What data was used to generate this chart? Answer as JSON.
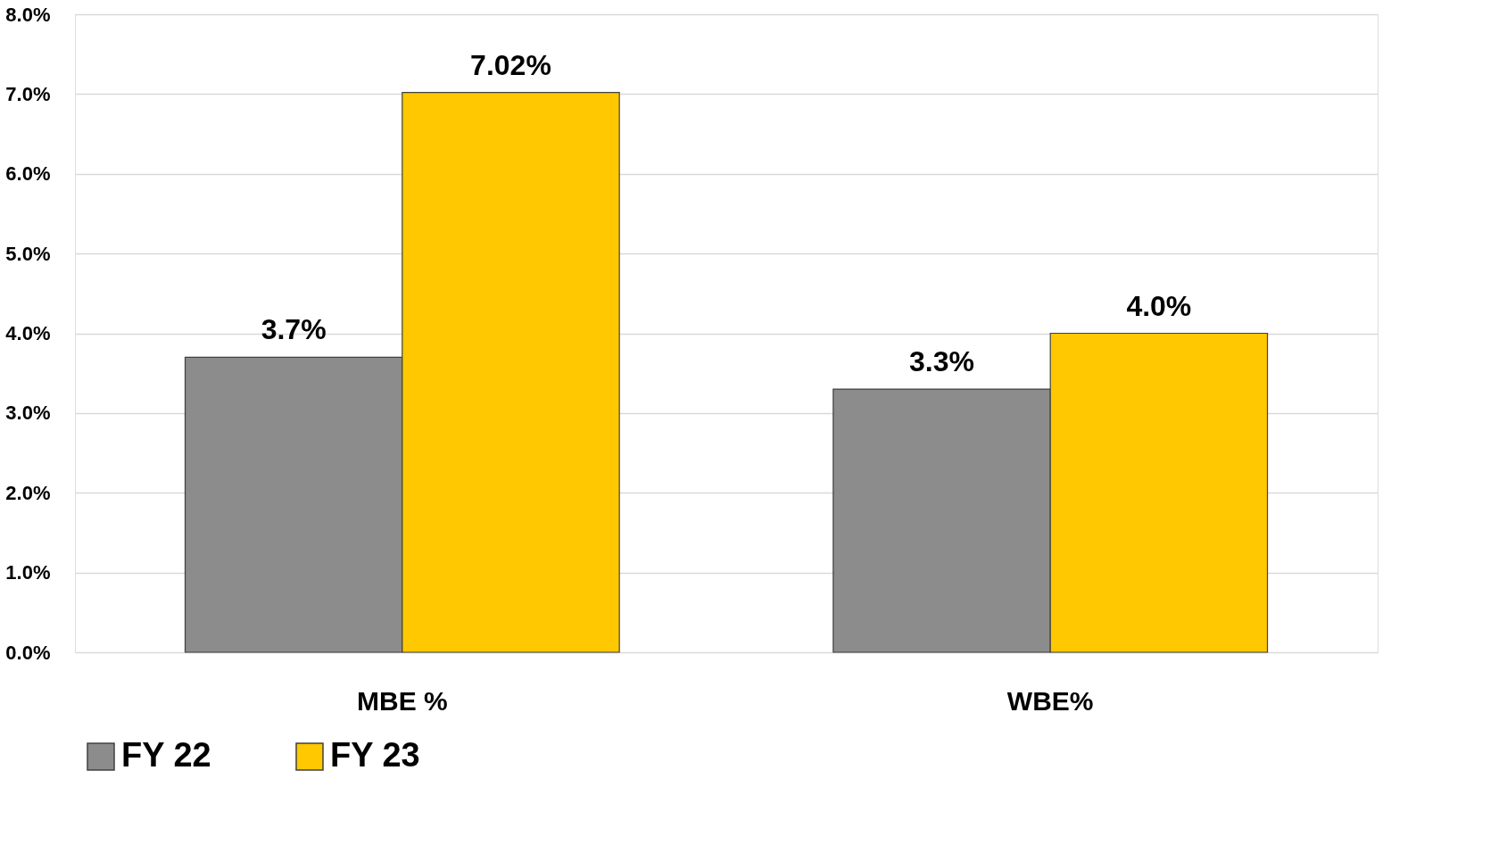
{
  "chart_data": {
    "type": "bar",
    "categories": [
      "MBE %",
      "WBE%"
    ],
    "series": [
      {
        "name": "FY 22",
        "color": "#8c8c8c",
        "values": [
          3.7,
          3.3
        ],
        "value_labels": [
          "3.7%",
          "3.3%"
        ]
      },
      {
        "name": "FY 23",
        "color": "#ffc800",
        "values": [
          7.02,
          4.0
        ],
        "value_labels": [
          "7.02%",
          "4.0%"
        ]
      }
    ],
    "ylim": [
      0,
      8
    ],
    "yticks": [
      {
        "value": 0,
        "label": "0.0%"
      },
      {
        "value": 1,
        "label": "1.0%"
      },
      {
        "value": 2,
        "label": "2.0%"
      },
      {
        "value": 3,
        "label": "3.0%"
      },
      {
        "value": 4,
        "label": "4.0%"
      },
      {
        "value": 5,
        "label": "5.0%"
      },
      {
        "value": 6,
        "label": "6.0%"
      },
      {
        "value": 7,
        "label": "7.0%"
      },
      {
        "value": 8,
        "label": "8.0%"
      }
    ],
    "grid": "y",
    "legend": "bottom"
  }
}
